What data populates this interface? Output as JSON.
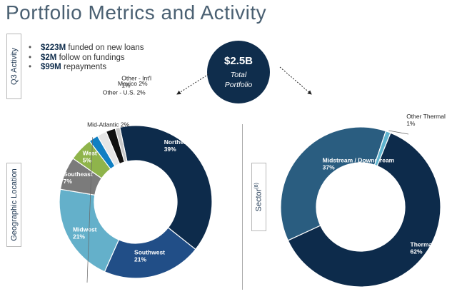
{
  "title": "Portfolio Metrics and Activity",
  "q3": {
    "box_label": "Q3 Activity",
    "bullets": [
      {
        "value": "$223M",
        "text": "funded on new loans"
      },
      {
        "value": "$2M",
        "text": "follow on fundings"
      },
      {
        "value": "$99M",
        "text": "repayments"
      }
    ]
  },
  "total": {
    "value": "$2.5B",
    "line1": "Total",
    "line2": "Portfolio"
  },
  "geo_box_label": "Geographic Location",
  "sector_box_label": "Sector",
  "sector_box_sup": "(8)",
  "chart_data": [
    {
      "type": "pie",
      "title": "Geographic Location",
      "donut": true,
      "slices": [
        {
          "label": "Northeast",
          "value": 39,
          "display": "39%",
          "color": "#0d2b4b"
        },
        {
          "label": "Southwest",
          "value": 21,
          "display": "21%",
          "color": "#214e87"
        },
        {
          "label": "Midwest",
          "value": 21,
          "display": "21%",
          "color": "#64b0ca"
        },
        {
          "label": "Southeast",
          "value": 7,
          "display": "7%",
          "color": "#7b7b7b"
        },
        {
          "label": "West",
          "value": 5,
          "display": "5%",
          "color": "#8fb44b"
        },
        {
          "label": "Mid-Atlantic",
          "value": 2,
          "display": "2%",
          "color": "#0f7fc3"
        },
        {
          "label": "Other - U.S.",
          "value": 2,
          "display": "2%",
          "color": "#e6e6e6"
        },
        {
          "label": "Mexico",
          "value": 2,
          "display": "2%",
          "color": "#111111"
        },
        {
          "label": "Other - Int'l",
          "value": 1,
          "display": "1%",
          "color": "#c9c9c9"
        }
      ]
    },
    {
      "type": "pie",
      "title": "Sector",
      "donut": true,
      "slices": [
        {
          "label": "Thermal - Natural Gas",
          "value": 62,
          "display": "62%",
          "color": "#0d2b4b"
        },
        {
          "label": "Midstream / Downstream",
          "value": 37,
          "display": "37%",
          "color": "#2a5d80"
        },
        {
          "label": "Other Thermal",
          "value": 1,
          "display": "1%",
          "color": "#5fb4cf"
        }
      ]
    }
  ]
}
